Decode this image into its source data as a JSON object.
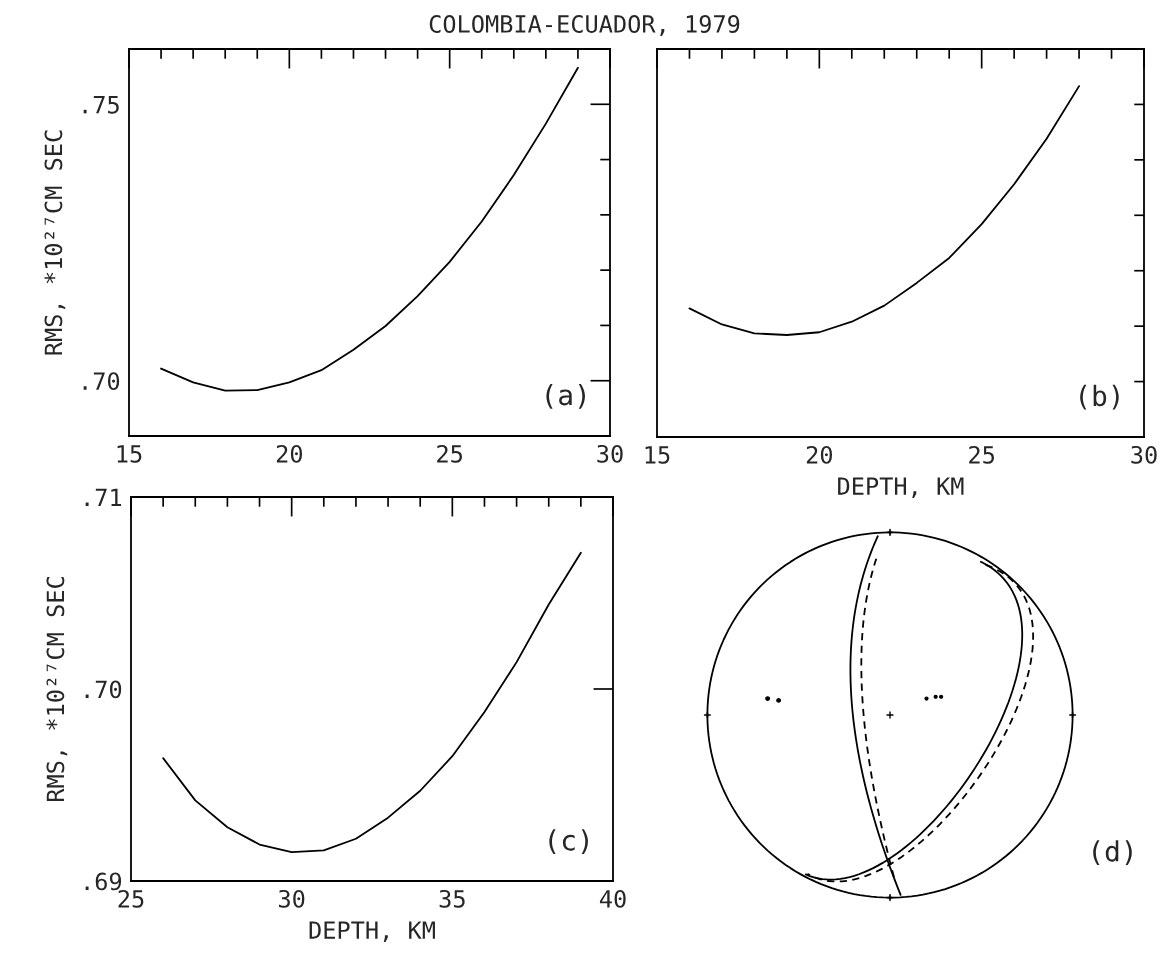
{
  "chart_data": [
    {
      "type": "line",
      "title": "COLOMBIA-ECUADOR, 1979",
      "ylabel": "RMS, *10²⁷CM SEC",
      "annotations": [
        "(a)"
      ],
      "x": [
        16,
        17,
        18,
        19,
        20,
        21,
        22,
        23,
        24,
        25,
        26,
        27,
        28,
        29
      ],
      "values": [
        0.7022,
        0.6997,
        0.6982,
        0.6983,
        0.6997,
        0.7019,
        0.7056,
        0.7099,
        0.7153,
        0.7215,
        0.7288,
        0.7372,
        0.7465,
        0.7566
      ],
      "xlim": [
        15,
        30
      ],
      "ylim": [
        0.69,
        0.76
      ],
      "xticks": [
        15,
        {
          "value": 16,
          "label": null
        },
        {
          "value": 17,
          "label": null
        },
        {
          "value": 18,
          "label": null
        },
        {
          "value": 19,
          "label": null
        },
        20,
        {
          "value": 21,
          "label": null
        },
        {
          "value": 22,
          "label": null
        },
        {
          "value": 23,
          "label": null
        },
        {
          "value": 24,
          "label": null
        },
        25,
        {
          "value": 26,
          "label": null
        },
        {
          "value": 27,
          "label": null
        },
        {
          "value": 28,
          "label": null
        },
        {
          "value": 29,
          "label": null
        },
        30
      ],
      "yticks": [
        {
          "value": 0.7,
          "label": ".70"
        },
        {
          "value": 0.71,
          "label": null
        },
        {
          "value": 0.72,
          "label": null
        },
        {
          "value": 0.73,
          "label": null
        },
        {
          "value": 0.74,
          "label": null
        },
        {
          "value": 0.75,
          "label": ".75"
        }
      ],
      "grid": false,
      "marker": "none",
      "line_style": "solid"
    },
    {
      "type": "line",
      "xlabel": "DEPTH, KM",
      "annotations": [
        "(b)"
      ],
      "x": [
        16,
        17,
        18,
        19,
        20,
        21,
        22,
        23,
        24,
        25,
        26,
        27,
        28
      ],
      "values": [
        0.7132,
        0.7103,
        0.7087,
        0.7084,
        0.7089,
        0.7108,
        0.7137,
        0.7178,
        0.7223,
        0.7284,
        0.7356,
        0.7438,
        0.7533
      ],
      "xlim": [
        15,
        30
      ],
      "ylim": [
        0.69,
        0.76
      ],
      "xticks": [
        15,
        {
          "value": 16,
          "label": null
        },
        {
          "value": 17,
          "label": null
        },
        {
          "value": 18,
          "label": null
        },
        {
          "value": 19,
          "label": null
        },
        20,
        {
          "value": 21,
          "label": null
        },
        {
          "value": 22,
          "label": null
        },
        {
          "value": 23,
          "label": null
        },
        {
          "value": 24,
          "label": null
        },
        25,
        {
          "value": 26,
          "label": null
        },
        {
          "value": 27,
          "label": null
        },
        {
          "value": 28,
          "label": null
        },
        {
          "value": 29,
          "label": null
        },
        30
      ],
      "yticks": [
        {
          "value": 0.7,
          "label": null
        },
        {
          "value": 0.71,
          "label": null
        },
        {
          "value": 0.72,
          "label": null
        },
        {
          "value": 0.73,
          "label": null
        },
        {
          "value": 0.74,
          "label": null
        },
        {
          "value": 0.75,
          "label": null
        }
      ],
      "tick_labels": "x",
      "grid": false,
      "marker": "none",
      "line_style": "solid"
    },
    {
      "type": "line",
      "xlabel": "DEPTH, KM",
      "ylabel": "RMS, *10²⁷CM SEC",
      "annotations": [
        "(c)"
      ],
      "x": [
        26,
        27,
        28,
        29,
        30,
        31,
        32,
        33,
        34,
        35,
        36,
        37,
        38,
        39
      ],
      "values": [
        0.6964,
        0.6942,
        0.6928,
        0.6919,
        0.6915,
        0.6916,
        0.6922,
        0.6933,
        0.6947,
        0.6965,
        0.6988,
        0.7014,
        0.7044,
        0.7071
      ],
      "xlim": [
        25,
        40
      ],
      "ylim": [
        0.69,
        0.71
      ],
      "xticks": [
        25,
        {
          "value": 26,
          "label": null
        },
        {
          "value": 27,
          "label": null
        },
        {
          "value": 28,
          "label": null
        },
        {
          "value": 29,
          "label": null
        },
        30,
        {
          "value": 31,
          "label": null
        },
        {
          "value": 32,
          "label": null
        },
        {
          "value": 33,
          "label": null
        },
        {
          "value": 34,
          "label": null
        },
        35,
        {
          "value": 36,
          "label": null
        },
        {
          "value": 37,
          "label": null
        },
        {
          "value": 38,
          "label": null
        },
        {
          "value": 39,
          "label": null
        },
        40
      ],
      "yticks": [
        {
          "value": 0.69,
          "label": ".69"
        },
        {
          "value": 0.7,
          "label": ".70"
        },
        {
          "value": 0.71,
          "label": ".71"
        }
      ],
      "grid": false,
      "marker": "none",
      "line_style": "solid"
    },
    {
      "type": "other",
      "annotations": [
        "(d)"
      ]
    }
  ]
}
